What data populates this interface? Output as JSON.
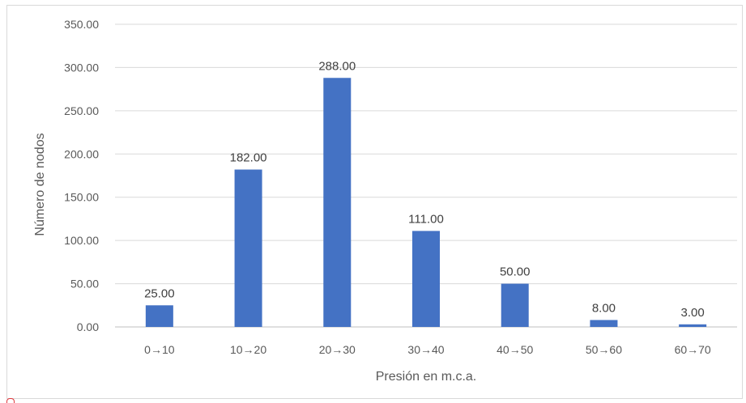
{
  "chart_data": {
    "type": "bar",
    "categories": [
      "0→10",
      "10→20",
      "20→30",
      "30→40",
      "40→50",
      "50→60",
      "60→70"
    ],
    "values": [
      25,
      182,
      288,
      111,
      50,
      8,
      3
    ],
    "data_labels": [
      "25.00",
      "182.00",
      "288.00",
      "111.00",
      "50.00",
      "8.00",
      "3.00"
    ],
    "xlabel": "Presión en m.c.a.",
    "ylabel": "Número de nodos",
    "ylim": [
      0,
      350
    ],
    "yticks": [
      "0.00",
      "50.00",
      "100.00",
      "150.00",
      "200.00",
      "250.00",
      "300.00",
      "350.00"
    ],
    "grid": true,
    "bar_color": "#4472C4",
    "grid_color": "#d9d9d9"
  }
}
